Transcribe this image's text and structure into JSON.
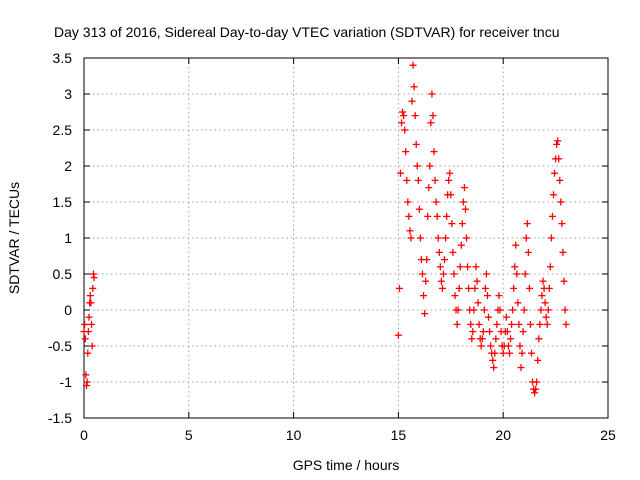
{
  "chart_data": {
    "type": "scatter",
    "title": "Day 313 of 2016, Sidereal Day-to-day VTEC variation (SDTVAR) for receiver tncu",
    "xlabel": "GPS time / hours",
    "ylabel": "SDTVAR / TECUs",
    "xlim": [
      0,
      25
    ],
    "ylim": [
      -1.5,
      3.5
    ],
    "xticks": [
      0,
      5,
      10,
      15,
      20,
      25
    ],
    "yticks": [
      -1.5,
      -1,
      -0.5,
      0,
      0.5,
      1,
      1.5,
      2,
      2.5,
      3,
      3.5
    ],
    "grid": true,
    "marker": "+",
    "color": "#ff0000",
    "series": [
      {
        "name": "SDTVAR",
        "x": [
          0.0,
          0.03,
          0.06,
          0.09,
          0.12,
          0.15,
          0.18,
          0.21,
          0.24,
          0.27,
          0.3,
          0.33,
          0.36,
          0.39,
          0.42,
          0.45,
          0.48,
          15.0,
          15.05,
          15.1,
          15.15,
          15.2,
          15.25,
          15.3,
          15.35,
          15.4,
          15.45,
          15.5,
          15.55,
          15.6,
          15.65,
          15.7,
          15.75,
          15.8,
          15.85,
          15.9,
          15.95,
          16.0,
          16.05,
          16.1,
          16.15,
          16.2,
          16.25,
          16.3,
          16.35,
          16.4,
          16.45,
          16.5,
          16.55,
          16.6,
          16.65,
          16.7,
          16.75,
          16.8,
          16.85,
          16.9,
          16.95,
          17.0,
          17.05,
          17.1,
          17.15,
          17.2,
          17.25,
          17.3,
          17.35,
          17.4,
          17.45,
          17.5,
          17.55,
          17.6,
          17.65,
          17.7,
          17.75,
          17.8,
          17.85,
          17.9,
          17.95,
          18.0,
          18.05,
          18.1,
          18.15,
          18.2,
          18.25,
          18.3,
          18.35,
          18.4,
          18.45,
          18.5,
          18.55,
          18.6,
          18.65,
          18.7,
          18.75,
          18.8,
          18.85,
          18.9,
          18.95,
          19.0,
          19.05,
          19.1,
          19.15,
          19.2,
          19.25,
          19.3,
          19.35,
          19.4,
          19.45,
          19.5,
          19.55,
          19.6,
          19.65,
          19.7,
          19.75,
          19.8,
          19.85,
          19.9,
          19.95,
          20.0,
          20.05,
          20.1,
          20.15,
          20.2,
          20.25,
          20.3,
          20.35,
          20.4,
          20.45,
          20.5,
          20.55,
          20.6,
          20.65,
          20.7,
          20.75,
          20.8,
          20.85,
          20.9,
          20.95,
          21.0,
          21.05,
          21.1,
          21.15,
          21.2,
          21.25,
          21.3,
          21.35,
          21.4,
          21.45,
          21.5,
          21.55,
          21.6,
          21.65,
          21.7,
          21.75,
          21.8,
          21.85,
          21.9,
          21.95,
          22.0,
          22.05,
          22.1,
          22.15,
          22.2,
          22.25,
          22.3,
          22.35,
          22.4,
          22.45,
          22.5,
          22.55,
          22.6,
          22.65,
          22.7,
          22.75,
          22.8,
          22.85,
          22.9,
          22.95,
          23.0
        ],
        "y": [
          -0.3,
          -0.2,
          -0.4,
          -0.9,
          -1.05,
          -1.0,
          -0.6,
          -0.3,
          -0.1,
          0.1,
          0.2,
          0.1,
          -0.2,
          -0.5,
          0.3,
          0.5,
          0.45,
          -0.35,
          0.3,
          1.9,
          2.6,
          2.75,
          2.7,
          2.5,
          2.2,
          1.8,
          1.5,
          1.3,
          1.1,
          1.0,
          2.9,
          3.4,
          3.1,
          2.7,
          2.3,
          2.0,
          1.8,
          1.4,
          1.0,
          0.7,
          0.5,
          0.2,
          -0.05,
          0.4,
          0.7,
          1.3,
          1.7,
          2.0,
          2.6,
          3.0,
          2.7,
          2.2,
          1.8,
          1.5,
          1.3,
          1.0,
          0.8,
          0.6,
          0.4,
          0.3,
          0.5,
          0.7,
          1.0,
          1.3,
          1.6,
          1.8,
          1.9,
          1.6,
          1.2,
          0.8,
          0.5,
          0.2,
          0.0,
          -0.2,
          0.0,
          0.3,
          0.6,
          0.9,
          1.2,
          1.5,
          1.7,
          1.4,
          1.0,
          0.6,
          0.3,
          0.0,
          -0.2,
          -0.4,
          -0.3,
          0.0,
          0.3,
          0.6,
          0.4,
          0.1,
          -0.2,
          -0.4,
          -0.5,
          -0.4,
          -0.3,
          0.0,
          0.3,
          0.5,
          0.2,
          -0.1,
          -0.3,
          -0.5,
          -0.6,
          -0.7,
          -0.8,
          -0.6,
          -0.4,
          -0.2,
          0.0,
          0.2,
          0.0,
          -0.3,
          -0.5,
          -0.6,
          -0.5,
          -0.3,
          -0.1,
          -0.3,
          -0.5,
          -0.6,
          -0.4,
          -0.2,
          0.0,
          0.3,
          0.6,
          0.9,
          0.5,
          0.1,
          -0.2,
          -0.5,
          -0.8,
          -0.6,
          -0.3,
          0.0,
          0.5,
          1.0,
          1.2,
          0.8,
          0.3,
          -0.2,
          -0.6,
          -1.0,
          -1.1,
          -1.15,
          -1.1,
          -1.0,
          -0.7,
          -0.4,
          -0.2,
          0.0,
          0.2,
          0.4,
          0.3,
          0.1,
          -0.1,
          -0.2,
          0.0,
          0.3,
          0.6,
          1.0,
          1.3,
          1.6,
          1.9,
          2.1,
          2.3,
          2.35,
          2.1,
          1.8,
          1.5,
          1.2,
          0.8,
          0.4,
          0.0,
          -0.2
        ]
      }
    ]
  }
}
